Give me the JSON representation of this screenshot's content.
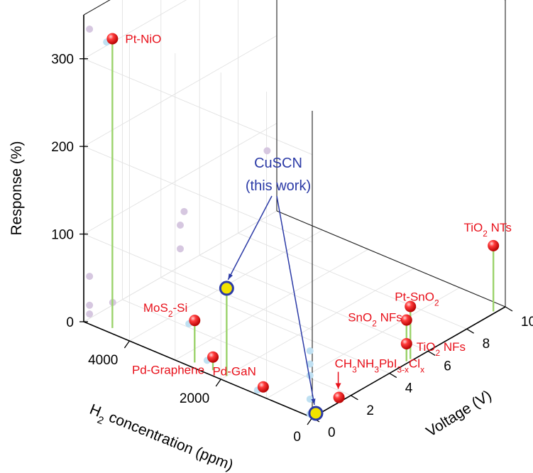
{
  "chart_data": {
    "type": "scatter",
    "axes": {
      "x": {
        "label_parts": [
          "H",
          "2",
          " concentration (ppm)"
        ],
        "ticks": [
          "0",
          "2000",
          "4000"
        ]
      },
      "y": {
        "label": "Voltage (V)",
        "ticks": [
          "0",
          "2",
          "4",
          "6",
          "8",
          "10"
        ]
      },
      "z": {
        "label": "Response (%)",
        "ticks": [
          "0",
          "100",
          "200",
          "300"
        ]
      }
    },
    "points": [
      {
        "label_parts": [
          "Pt-NiO"
        ],
        "h2_ppm": 4500,
        "voltage": 0.3,
        "response": 330
      },
      {
        "label_parts": [
          "MoS",
          "2",
          "-Si"
        ],
        "h2_ppm": 2700,
        "voltage": 0.3,
        "response": 48
      },
      {
        "label_parts": [
          "Pd-Graphene"
        ],
        "h2_ppm": 2300,
        "voltage": 0.3,
        "response": 15
      },
      {
        "label_parts": [
          "Pd-GaN"
        ],
        "h2_ppm": 1200,
        "voltage": 0.3,
        "response": 5
      },
      {
        "label_parts": [
          "CH",
          "3",
          "NH",
          "3",
          "PbI",
          "3-x",
          "Cl",
          "x"
        ],
        "h2_ppm": 50,
        "voltage": 1.5,
        "response": 3
      },
      {
        "label_parts": [
          "TiO",
          "2",
          " NTs"
        ],
        "h2_ppm": 50,
        "voltage": 9.5,
        "response": 75
      },
      {
        "label_parts": [
          "Pt-SnO",
          "2"
        ],
        "h2_ppm": 50,
        "voltage": 5.2,
        "response": 60
      },
      {
        "label_parts": [
          "SnO",
          "2",
          " NFs"
        ],
        "h2_ppm": 50,
        "voltage": 5.0,
        "response": 47
      },
      {
        "label_parts": [
          "TiO",
          "2",
          " NFs"
        ],
        "h2_ppm": 50,
        "voltage": 5.0,
        "response": 20
      }
    ],
    "highlight": {
      "line1": "CuSCN",
      "line2": "(this work)",
      "point_high": {
        "h2_ppm": 2000,
        "voltage": 0.3,
        "response": 100
      },
      "point_low": {
        "h2_ppm": 50,
        "voltage": 0.3,
        "response": 0
      }
    },
    "colors": {
      "point": "#e8101a",
      "label": "#e8101a",
      "stem": "#9bd36b",
      "highlight_fill": "#f2e200",
      "highlight_ring": "#2b3aa6",
      "projection_left": "#bfe0f2",
      "projection_back": "#d6c7e0"
    }
  }
}
